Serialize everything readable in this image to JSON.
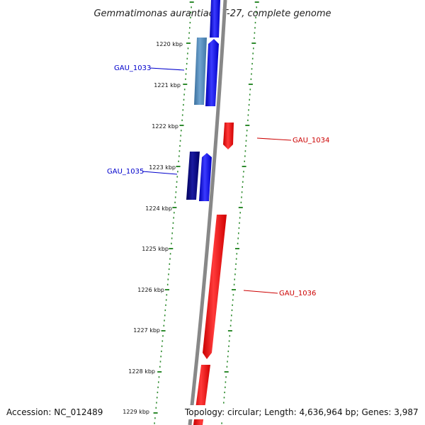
{
  "title": "Gemmatimonas aurantiaca T-27, complete genome",
  "footer": {
    "accession": "Accession: NC_012489",
    "summary": "Topology: circular; Length: 4,636,964 bp; Genes: 3,987"
  },
  "scale_labels": [
    "1220 kbp",
    "1221 kbp",
    "1222 kbp",
    "1223 kbp",
    "1224 kbp",
    "1225 kbp",
    "1226 kbp",
    "1227 kbp",
    "1228 kbp",
    "1229 kbp"
  ],
  "gene_labels": [
    {
      "name": "GAU_1033",
      "color": "#0000cc"
    },
    {
      "name": "GAU_1034",
      "color": "#cc0000"
    },
    {
      "name": "GAU_1035",
      "color": "#0000cc"
    },
    {
      "name": "GAU_1036",
      "color": "#cc0000"
    }
  ],
  "colors": {
    "backbone": "#888888",
    "forward_gene": "#0000ff",
    "reverse_gene": "#ff0000",
    "orf_steelblue": "#4f86b6",
    "orf_navy": "#000080",
    "tick": "#2e8b2e"
  }
}
